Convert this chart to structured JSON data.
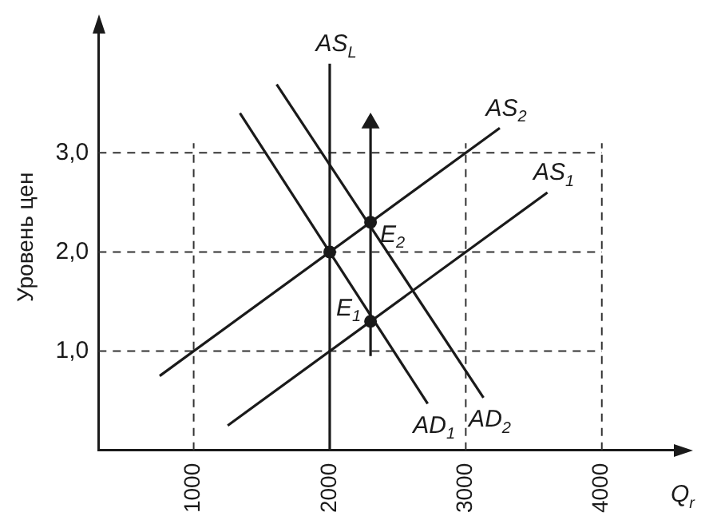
{
  "chart_data": {
    "type": "line",
    "ylabel": "Уровень цен",
    "xlabel": "Q$_{r}$",
    "xlim": [
      300,
      4600
    ],
    "ylim": [
      0,
      4.3
    ],
    "xticks": [
      1000,
      2000,
      3000,
      4000
    ],
    "yticks": [
      {
        "value": 1,
        "label": "1,0"
      },
      {
        "value": 2,
        "label": "2,0"
      },
      {
        "value": 3,
        "label": "3,0"
      }
    ],
    "grid": true,
    "legend": false,
    "marker": "none",
    "line_style": "solid",
    "series": [
      {
        "name": "AS$_{L}$",
        "color": "#1a1a1a",
        "x": [
          2000,
          2000
        ],
        "values": [
          0,
          3.9
        ]
      },
      {
        "name": "AS$_{2}$",
        "color": "#1a1a1a",
        "x": [
          750,
          3250
        ],
        "values": [
          0.75,
          3.25
        ]
      },
      {
        "name": "AS$_{1}$",
        "color": "#1a1a1a",
        "x": [
          1250,
          3600
        ],
        "values": [
          0.25,
          2.6
        ]
      },
      {
        "name": "AD$_{1}$",
        "color": "#1a1a1a",
        "x": [
          1340,
          2720
        ],
        "values": [
          3.4,
          0.47
        ]
      },
      {
        "name": "AD$_{2}$",
        "color": "#1a1a1a",
        "x": [
          1610,
          3130
        ],
        "values": [
          3.69,
          0.53
        ]
      },
      {
        "color": "#1a1a1a",
        "marker": "triangle",
        "x": [
          2300,
          2300
        ],
        "values": [
          0.95,
          3.3
        ]
      },
      {
        "type": "scatter",
        "color": "#1a1a1a",
        "marker": "circle",
        "x": [
          2000,
          2300,
          2300
        ],
        "values": [
          2,
          1.3,
          2.3
        ]
      }
    ],
    "annotations": [
      {
        "text": "E$_{1}$",
        "x": 2300,
        "y": 1.3
      },
      {
        "text": "E$_{2}$",
        "x": 2300,
        "y": 2.3
      }
    ]
  }
}
